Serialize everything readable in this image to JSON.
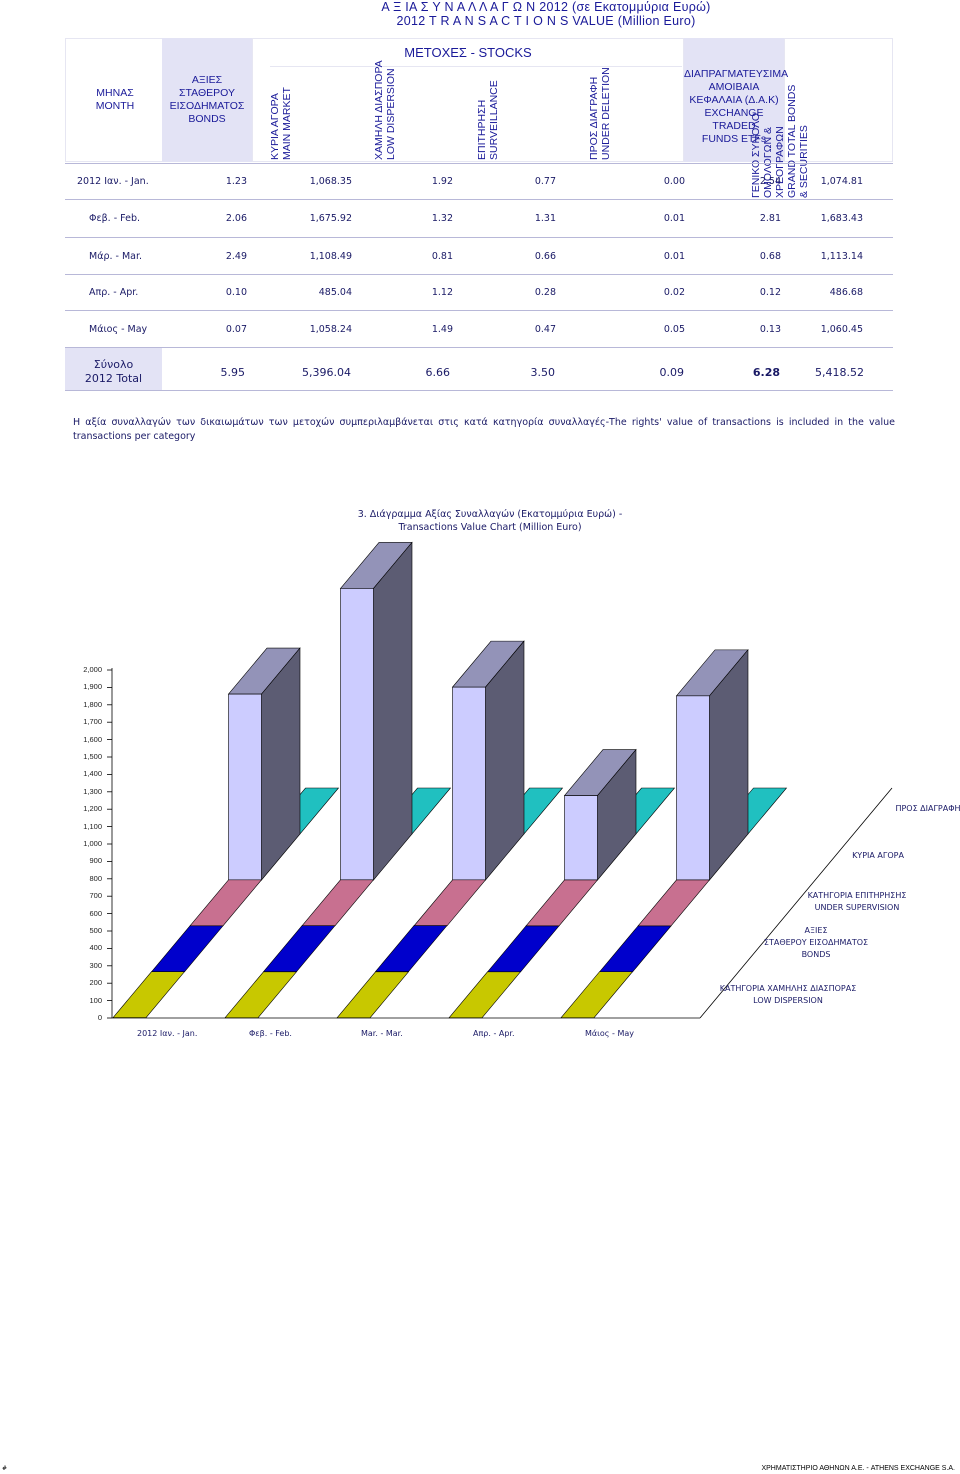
{
  "header": {
    "title_line1": "Α Ξ ΙΑ   Σ Υ Ν Α Λ Λ Α Γ Ω Ν  2012    (σε Εκατομμύρια Ευρώ)",
    "title_line2": "2012  T R A N S A C T I O N S  VALUE     (Million Euro)"
  },
  "table": {
    "col_month": [
      "ΜΗΝΑΣ",
      "MONTH"
    ],
    "col_bonds": [
      "ΑΞΙΕΣ",
      "ΣΤΑΘΕΡΟΥ",
      "ΕΙΣΟΔΗΜΑΤΟΣ",
      "BONDS"
    ],
    "stocks_group": "ΜΕΤΟΧΕΣ  -  STOCKS",
    "col_main": [
      "ΚΥΡΙΑ ΑΓΟΡΑ",
      "MAIN MARKET"
    ],
    "col_low": [
      "ΧΑΜΗΛΗ ΔΙΑΣΠΟΡΑ",
      "LOW DISPERSION"
    ],
    "col_surv": [
      "ΕΠΙΤΗΡΗΣΗ",
      "SURVEILLANCE"
    ],
    "col_del": [
      "ΠΡΟΣ ΔΙΑΓΡΑΦΗ",
      "UNDER DELETION"
    ],
    "col_etf": [
      "ΔΙΑΠΡΑΓΜΑΤΕΥΣΙΜΑ",
      "ΑΜΟΙΒΑΙΑ",
      "ΚΕΦΑΛΑΙΑ (Δ.Α.Κ)",
      "EXCHANGE TRADED",
      "FUNDS ETFs"
    ],
    "col_total": [
      "ΓΕΝΙΚΟ ΣΥΝΟΛΟ",
      "ΟΜΟΛΟΓΩΝ &",
      "ΧΡΕΟΓΡΑΦΩΝ",
      "GRAND TOTAL BONDS",
      "& SECURITIES"
    ],
    "rows": [
      {
        "month": "2012   Ιαν. - Jan.",
        "bonds": "1.23",
        "main": "1,068.35",
        "low": "1.92",
        "surv": "0.77",
        "del": "0.00",
        "etf": "2.54",
        "total": "1,074.81"
      },
      {
        "month": "Φεβ. - Feb.",
        "bonds": "2.06",
        "main": "1,675.92",
        "low": "1.32",
        "surv": "1.31",
        "del": "0.01",
        "etf": "2.81",
        "total": "1,683.43"
      },
      {
        "month": "Μάρ. - Mar.",
        "bonds": "2.49",
        "main": "1,108.49",
        "low": "0.81",
        "surv": "0.66",
        "del": "0.01",
        "etf": "0.68",
        "total": "1,113.14"
      },
      {
        "month": "Απρ. - Apr.",
        "bonds": "0.10",
        "main": "485.04",
        "low": "1.12",
        "surv": "0.28",
        "del": "0.02",
        "etf": "0.12",
        "total": "486.68"
      },
      {
        "month": "Μάιος - May",
        "bonds": "0.07",
        "main": "1,058.24",
        "low": "1.49",
        "surv": "0.47",
        "del": "0.05",
        "etf": "0.13",
        "total": "1,060.45"
      }
    ],
    "total_row": {
      "label1": "Σύνολο",
      "label2": "2012 Total",
      "bonds": "5.95",
      "main": "5,396.04",
      "low": "6.66",
      "surv": "3.50",
      "del": "0.09",
      "etf": "6.28",
      "total": "5,418.52"
    }
  },
  "note": "Η αξία συναλλαγών των δικαιωμάτων των μετοχών συμπεριλαμβάνεται στις κατά κατηγορία συναλλαγές-The rights' value of transactions is included in the value transactions per category",
  "chart_data": {
    "type": "bar",
    "title": "3.  Διάγραμμα Αξίας Συναλλαγών (Εκατομμύρια Ευρώ) -",
    "subtitle": "Transactions Value Chart  (Million Euro)",
    "categories": [
      "2012  Ιαν. - Jan.",
      "Φεβ. - Feb.",
      "Mar. - Mar.",
      "Απρ. - Apr.",
      "Μάιος - May"
    ],
    "ylim": [
      0,
      2000
    ],
    "yticks": [
      "0",
      "100",
      "200",
      "300",
      "400",
      "500",
      "600",
      "700",
      "800",
      "900",
      "1,000",
      "1,100",
      "1,200",
      "1,300",
      "1,400",
      "1,500",
      "1,600",
      "1,700",
      "1,800",
      "1,900",
      "2,000"
    ],
    "series": [
      {
        "name": "ΚΑΤΗΓΟΡΙΑ ΧΑΜΗΛΗΣ ΔΙΑΣΠΟΡΑΣ LOW DISPERSION",
        "values": [
          1.92,
          1.32,
          0.81,
          1.12,
          1.49
        ],
        "color": "#c8c800"
      },
      {
        "name": "ΑΞΙΕΣ ΣΤΑΘΕΡΟΥ ΕΙΣΟΔΗΜΑΤΟΣ BONDS",
        "values": [
          1.23,
          2.06,
          2.49,
          0.1,
          0.07
        ],
        "color": "#0000cc"
      },
      {
        "name": "ΚΑΤΗΓΟΡΙΑ ΕΠΙΤΗΡΗΣΗΣ UNDER SUPERVISION",
        "values": [
          0.77,
          1.31,
          0.66,
          0.28,
          0.47
        ],
        "color": "#c87090"
      },
      {
        "name": "ΚΥΡΙΑ ΑΓΟΡΑ",
        "values": [
          1068.35,
          1675.92,
          1108.49,
          485.04,
          1058.24
        ],
        "color": "#ccccff"
      },
      {
        "name": "ΠΡΟΣ ΔΙΑΓΡΑΦΗ",
        "values": [
          0.0,
          0.01,
          0.01,
          0.02,
          0.05
        ],
        "color": "#20c0c0"
      }
    ],
    "depth_labels": [
      [
        "ΠΡΟΣ ΔΙΑΓΡΑΦΗ"
      ],
      [
        "ΚΥΡΙΑ ΑΓΟΡΑ"
      ],
      [
        "ΚΑΤΗΓΟΡΙΑ ΕΠΙΤΗΡΗΣΗΣ",
        "UNDER SUPERVISION"
      ],
      [
        "ΑΞΙΕΣ",
        "ΣΤΑΘΕΡΟΥ ΕΙΣΟΔΗΜΑΤΟΣ",
        "BONDS"
      ],
      [
        "ΚΑΤΗΓΟΡΙΑ ΧΑΜΗΛΗΣ ΔΙΑΣΠΟΡΑΣ",
        "LOW DISPERSION"
      ]
    ]
  },
  "footer": {
    "left": "#",
    "right": "ΧΡΗΜΑΤΙΣΤΗΡΙΟ ΑΘΗΝΩΝ Α.Ε. - ATHENS EXCHANGE S.A."
  }
}
